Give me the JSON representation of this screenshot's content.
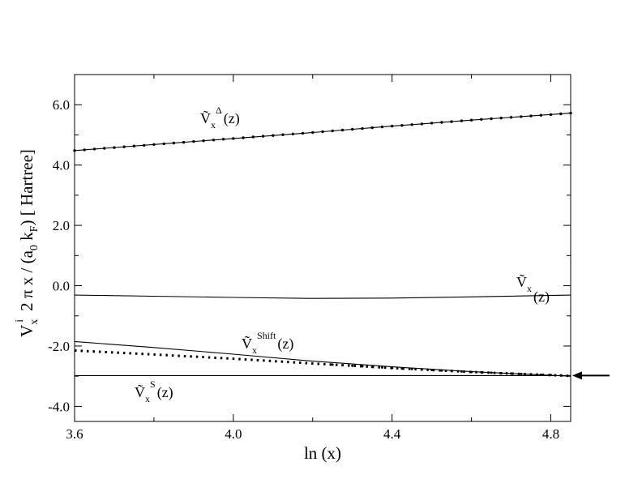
{
  "chart_data": {
    "type": "line",
    "xlabel": "ln (x)",
    "ylabel_parts": {
      "v": "V",
      "sub_x": "x",
      "sup_i": "i",
      "mid": "2 π x / (a",
      "sub_0": "0",
      "k": " k",
      "sub_F": "F",
      "end": ") [ Hartree]"
    },
    "xlim": [
      3.6,
      4.85
    ],
    "ylim": [
      -4.5,
      7.0
    ],
    "x_ticks": [
      {
        "value": 3.6,
        "label": "3.6"
      },
      {
        "value": 4.0,
        "label": "4.0"
      },
      {
        "value": 4.4,
        "label": "4.4"
      },
      {
        "value": 4.8,
        "label": "4.8"
      }
    ],
    "y_ticks": [
      {
        "value": -4.0,
        "label": "-4.0"
      },
      {
        "value": -2.0,
        "label": "-2.0"
      },
      {
        "value": 0.0,
        "label": "0.0"
      },
      {
        "value": 2.0,
        "label": "2.0"
      },
      {
        "value": 4.0,
        "label": "4.0"
      },
      {
        "value": 6.0,
        "label": "6.0"
      }
    ],
    "grid": false,
    "series": [
      {
        "label_parts": {
          "main": "Ṽ",
          "sub": "x",
          "sup": "Δ",
          "tail": "(z)"
        },
        "style": "solid-dots",
        "x": [
          3.6,
          3.8,
          4.0,
          4.2,
          4.4,
          4.6,
          4.85
        ],
        "y": [
          4.48,
          4.68,
          4.88,
          5.08,
          5.29,
          5.49,
          5.72
        ]
      },
      {
        "label_parts": {
          "main": "Ṽ",
          "sub": "x",
          "sup": "",
          "tail": "(z)"
        },
        "style": "solid",
        "x": [
          3.6,
          3.8,
          4.0,
          4.2,
          4.4,
          4.6,
          4.85
        ],
        "y": [
          -0.31,
          -0.35,
          -0.39,
          -0.42,
          -0.41,
          -0.37,
          -0.31
        ]
      },
      {
        "label_parts": {
          "main": "Ṽ",
          "sub": "x",
          "sup": "Shift",
          "tail": "(z)"
        },
        "style": "solid",
        "x": [
          3.6,
          3.8,
          4.0,
          4.2,
          4.4,
          4.6,
          4.85
        ],
        "y": [
          -1.85,
          -2.05,
          -2.27,
          -2.5,
          -2.69,
          -2.85,
          -3.0
        ]
      },
      {
        "label_parts": {
          "main": "",
          "sub": "",
          "sup": "",
          "tail": ""
        },
        "style": "dotted",
        "x": [
          3.6,
          3.8,
          4.0,
          4.2,
          4.4,
          4.6,
          4.85
        ],
        "y": [
          -2.15,
          -2.28,
          -2.42,
          -2.58,
          -2.73,
          -2.86,
          -2.99
        ]
      },
      {
        "label_parts": {
          "main": "Ṽ",
          "sub": "x",
          "sup": "S",
          "tail": "(z)"
        },
        "style": "solid",
        "x": [
          3.6,
          4.85
        ],
        "y": [
          -2.98,
          -2.98
        ]
      }
    ],
    "annotations": [
      {
        "type": "arrow",
        "points_to": [
          4.85,
          -2.98
        ],
        "direction": "left"
      }
    ]
  }
}
